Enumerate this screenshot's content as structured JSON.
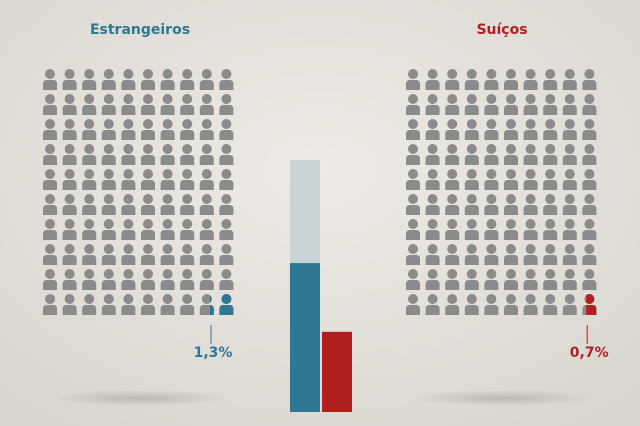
{
  "chart_data": {
    "type": "pictogram-bar",
    "series": [
      {
        "name": "Estrangeiros",
        "color": "#2e7891",
        "values": [
          1.3
        ],
        "value_labels": [
          "1,3%"
        ]
      },
      {
        "name": "Suíços",
        "color": "#b21f1f",
        "values": [
          0.7
        ],
        "value_labels": [
          "0,7%"
        ]
      }
    ],
    "ylim": [
      0,
      2.2
    ]
  }
}
